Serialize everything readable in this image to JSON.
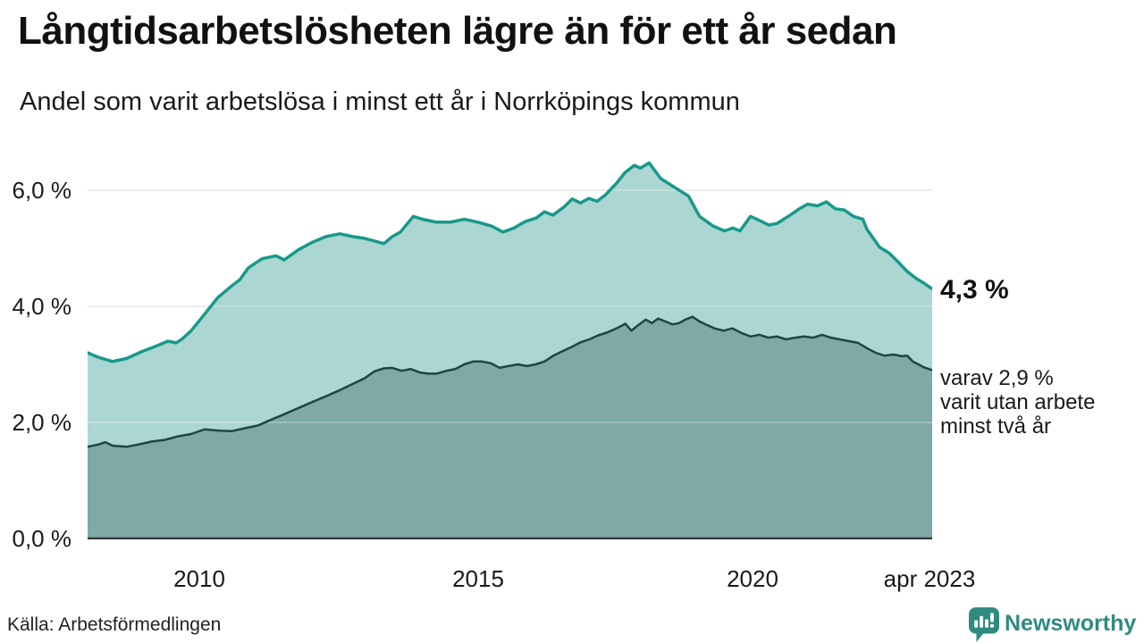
{
  "header": {
    "title": "Långtidsarbetslösheten lägre än för ett år sedan",
    "subtitle": "Andel som varit arbetslösa i minst ett år i Norrköpings kommun"
  },
  "annotations": {
    "end_value_label": "4,3 %",
    "secondary_label": "varav 2,9 %\nvarit utan arbete\nminst två år"
  },
  "footer": {
    "source": "Källa: Arbetsförmedlingen",
    "brand_name": "Newsworthy"
  },
  "colors": {
    "accent_teal": "#18998a",
    "light_fill": "#abd6d1",
    "dark_line": "#1d4545",
    "dark_fill": "#7ea9a4",
    "gridline": "#dcdcdc",
    "gridline_overlay": "rgba(255,255,255,0.33)",
    "axis_line": "#333333",
    "brand_teal": "#2f8b80",
    "text": "#1a1a1a"
  },
  "chart_data": {
    "type": "area",
    "title": "Långtidsarbetslösheten lägre än för ett år sedan",
    "subtitle": "Andel som varit arbetslösa i minst ett år i Norrköpings kommun",
    "source": "Källa: Arbetsförmedlingen",
    "grid": true,
    "legend_position": "right-edge-annotations",
    "x_axis": {
      "range": [
        2008.0,
        2023.25
      ],
      "ticks": [
        "2010",
        "2015",
        "2020",
        "apr 2023"
      ],
      "tick_years": [
        2010,
        2015,
        2020,
        2023.25
      ]
    },
    "y_axis": {
      "unit": "%",
      "range": [
        0,
        6.55
      ],
      "ticks": [
        "0,0 %",
        "2,0 %",
        "4,0 %",
        "6,0 %"
      ],
      "tick_values": [
        0,
        2,
        4,
        6
      ]
    },
    "series": [
      {
        "name": "Arbetslösa minst ett år",
        "end_value": 4.3,
        "end_label": "4,3 %",
        "line_color": "#18998a",
        "fill_color": "#abd6d1",
        "line_width": 3.5,
        "points": [
          [
            2008.0,
            3.2
          ],
          [
            2008.2,
            3.12
          ],
          [
            2008.45,
            3.05
          ],
          [
            2008.7,
            3.1
          ],
          [
            2009.0,
            3.23
          ],
          [
            2009.2,
            3.3
          ],
          [
            2009.45,
            3.4
          ],
          [
            2009.6,
            3.37
          ],
          [
            2009.7,
            3.43
          ],
          [
            2009.87,
            3.58
          ],
          [
            2010.1,
            3.85
          ],
          [
            2010.35,
            4.15
          ],
          [
            2010.6,
            4.35
          ],
          [
            2010.75,
            4.46
          ],
          [
            2010.9,
            4.66
          ],
          [
            2011.15,
            4.82
          ],
          [
            2011.4,
            4.87
          ],
          [
            2011.55,
            4.8
          ],
          [
            2011.8,
            4.97
          ],
          [
            2012.05,
            5.1
          ],
          [
            2012.3,
            5.2
          ],
          [
            2012.55,
            5.25
          ],
          [
            2012.8,
            5.2
          ],
          [
            2013.0,
            5.17
          ],
          [
            2013.2,
            5.12
          ],
          [
            2013.35,
            5.08
          ],
          [
            2013.5,
            5.2
          ],
          [
            2013.65,
            5.28
          ],
          [
            2013.88,
            5.55
          ],
          [
            2014.05,
            5.5
          ],
          [
            2014.3,
            5.45
          ],
          [
            2014.55,
            5.45
          ],
          [
            2014.8,
            5.5
          ],
          [
            2015.05,
            5.45
          ],
          [
            2015.3,
            5.38
          ],
          [
            2015.5,
            5.28
          ],
          [
            2015.7,
            5.35
          ],
          [
            2015.9,
            5.46
          ],
          [
            2016.1,
            5.52
          ],
          [
            2016.25,
            5.63
          ],
          [
            2016.4,
            5.57
          ],
          [
            2016.6,
            5.71
          ],
          [
            2016.75,
            5.85
          ],
          [
            2016.9,
            5.78
          ],
          [
            2017.05,
            5.86
          ],
          [
            2017.2,
            5.81
          ],
          [
            2017.35,
            5.92
          ],
          [
            2017.55,
            6.12
          ],
          [
            2017.7,
            6.3
          ],
          [
            2017.87,
            6.43
          ],
          [
            2017.98,
            6.38
          ],
          [
            2018.14,
            6.47
          ],
          [
            2018.35,
            6.2
          ],
          [
            2018.6,
            6.05
          ],
          [
            2018.85,
            5.9
          ],
          [
            2019.05,
            5.55
          ],
          [
            2019.3,
            5.38
          ],
          [
            2019.5,
            5.3
          ],
          [
            2019.65,
            5.35
          ],
          [
            2019.78,
            5.3
          ],
          [
            2019.97,
            5.55
          ],
          [
            2020.13,
            5.48
          ],
          [
            2020.3,
            5.4
          ],
          [
            2020.45,
            5.43
          ],
          [
            2020.7,
            5.58
          ],
          [
            2020.85,
            5.68
          ],
          [
            2021.0,
            5.76
          ],
          [
            2021.18,
            5.73
          ],
          [
            2021.34,
            5.8
          ],
          [
            2021.5,
            5.68
          ],
          [
            2021.66,
            5.66
          ],
          [
            2021.83,
            5.55
          ],
          [
            2022.0,
            5.5
          ],
          [
            2022.07,
            5.33
          ],
          [
            2022.3,
            5.02
          ],
          [
            2022.47,
            4.92
          ],
          [
            2022.63,
            4.77
          ],
          [
            2022.8,
            4.6
          ],
          [
            2022.96,
            4.48
          ],
          [
            2023.1,
            4.4
          ],
          [
            2023.25,
            4.3
          ]
        ]
      },
      {
        "name": "varav utan arbete minst två år",
        "end_value": 2.9,
        "end_label": "varav 2,9 % varit utan arbete minst två år",
        "line_color": "#1d4545",
        "fill_color": "#7ea9a4",
        "line_width": 2.5,
        "points": [
          [
            2008.0,
            1.58
          ],
          [
            2008.2,
            1.62
          ],
          [
            2008.32,
            1.66
          ],
          [
            2008.45,
            1.6
          ],
          [
            2008.7,
            1.58
          ],
          [
            2008.92,
            1.62
          ],
          [
            2009.16,
            1.67
          ],
          [
            2009.4,
            1.7
          ],
          [
            2009.63,
            1.76
          ],
          [
            2009.87,
            1.8
          ],
          [
            2010.11,
            1.88
          ],
          [
            2010.36,
            1.86
          ],
          [
            2010.6,
            1.85
          ],
          [
            2010.84,
            1.9
          ],
          [
            2011.08,
            1.95
          ],
          [
            2011.32,
            2.05
          ],
          [
            2011.57,
            2.15
          ],
          [
            2011.81,
            2.25
          ],
          [
            2012.05,
            2.35
          ],
          [
            2012.3,
            2.45
          ],
          [
            2012.54,
            2.55
          ],
          [
            2012.78,
            2.66
          ],
          [
            2013.0,
            2.76
          ],
          [
            2013.18,
            2.88
          ],
          [
            2013.35,
            2.93
          ],
          [
            2013.5,
            2.94
          ],
          [
            2013.67,
            2.89
          ],
          [
            2013.83,
            2.92
          ],
          [
            2014.0,
            2.86
          ],
          [
            2014.15,
            2.84
          ],
          [
            2014.3,
            2.84
          ],
          [
            2014.48,
            2.89
          ],
          [
            2014.64,
            2.92
          ],
          [
            2014.8,
            3.0
          ],
          [
            2014.96,
            3.05
          ],
          [
            2015.12,
            3.05
          ],
          [
            2015.28,
            3.02
          ],
          [
            2015.44,
            2.94
          ],
          [
            2015.6,
            2.97
          ],
          [
            2015.77,
            3.0
          ],
          [
            2015.93,
            2.97
          ],
          [
            2016.09,
            3.0
          ],
          [
            2016.25,
            3.05
          ],
          [
            2016.41,
            3.15
          ],
          [
            2016.58,
            3.23
          ],
          [
            2016.74,
            3.3
          ],
          [
            2016.9,
            3.38
          ],
          [
            2017.06,
            3.43
          ],
          [
            2017.22,
            3.5
          ],
          [
            2017.38,
            3.55
          ],
          [
            2017.55,
            3.62
          ],
          [
            2017.71,
            3.7
          ],
          [
            2017.82,
            3.58
          ],
          [
            2017.92,
            3.66
          ],
          [
            2018.08,
            3.77
          ],
          [
            2018.19,
            3.71
          ],
          [
            2018.3,
            3.79
          ],
          [
            2018.43,
            3.74
          ],
          [
            2018.56,
            3.69
          ],
          [
            2018.68,
            3.71
          ],
          [
            2018.79,
            3.77
          ],
          [
            2018.92,
            3.82
          ],
          [
            2019.05,
            3.74
          ],
          [
            2019.16,
            3.69
          ],
          [
            2019.32,
            3.62
          ],
          [
            2019.48,
            3.58
          ],
          [
            2019.64,
            3.62
          ],
          [
            2019.81,
            3.54
          ],
          [
            2019.97,
            3.48
          ],
          [
            2020.13,
            3.51
          ],
          [
            2020.29,
            3.46
          ],
          [
            2020.45,
            3.48
          ],
          [
            2020.61,
            3.43
          ],
          [
            2020.78,
            3.46
          ],
          [
            2020.94,
            3.48
          ],
          [
            2021.1,
            3.46
          ],
          [
            2021.26,
            3.51
          ],
          [
            2021.42,
            3.46
          ],
          [
            2021.58,
            3.43
          ],
          [
            2021.75,
            3.4
          ],
          [
            2021.91,
            3.37
          ],
          [
            2022.07,
            3.28
          ],
          [
            2022.23,
            3.2
          ],
          [
            2022.39,
            3.15
          ],
          [
            2022.55,
            3.17
          ],
          [
            2022.71,
            3.14
          ],
          [
            2022.8,
            3.15
          ],
          [
            2022.9,
            3.05
          ],
          [
            2023.0,
            3.0
          ],
          [
            2023.1,
            2.95
          ],
          [
            2023.25,
            2.9
          ]
        ]
      }
    ]
  },
  "layout_ticks": {
    "y_positions_note": "0%=603px, 2%=473px, 4%=343px, 6%=213px",
    "x_positions_note": "2010=223px, 2015=535px, 2020=842px, apr2023=1040px"
  }
}
